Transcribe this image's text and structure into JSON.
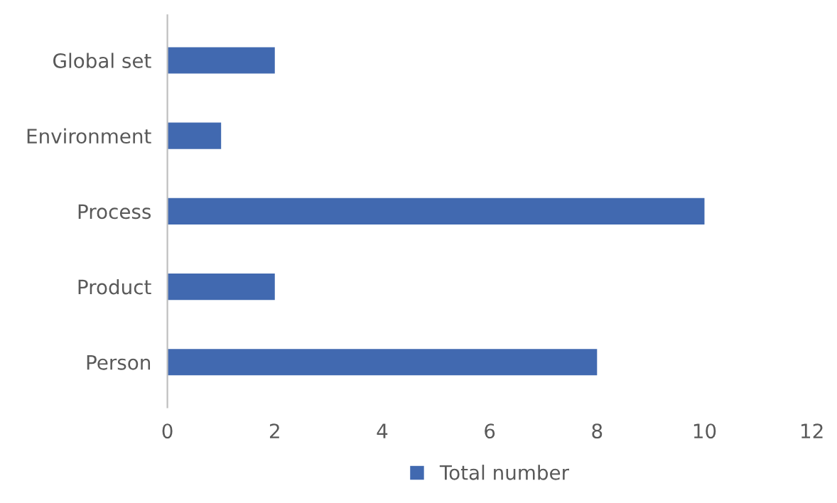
{
  "chart_data": {
    "type": "bar",
    "orientation": "horizontal",
    "categories": [
      "Global set",
      "Environment",
      "Process",
      "Product",
      "Person"
    ],
    "series": [
      {
        "name": "Total number",
        "color": "#4169b0",
        "values": [
          2,
          1,
          10,
          2,
          8
        ]
      }
    ],
    "xlim": [
      0,
      12
    ],
    "xticks": [
      0,
      2,
      4,
      6,
      8,
      10,
      12
    ],
    "grid": false,
    "legend": "bottom"
  }
}
